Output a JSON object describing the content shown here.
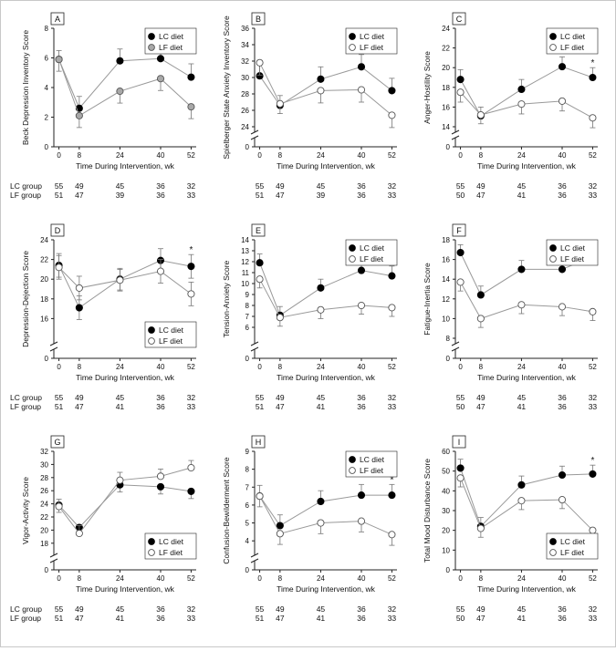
{
  "xlabel": "Time During Intervention, wk",
  "x_ticks": [
    0,
    8,
    24,
    40,
    52
  ],
  "group_labels": {
    "lc": "LC group",
    "lf": "LF group"
  },
  "colors": {
    "lc": "#000000",
    "lf_panel_a": "#a8a8a8",
    "lf": "#ffffff",
    "axis": "#222222",
    "line": "#999999"
  },
  "chart_data": [
    {
      "id": "A",
      "type": "line",
      "ylabel": "Beck Depression Inventory Score",
      "ylim": [
        0,
        8
      ],
      "yticks": [
        0,
        2,
        4,
        6,
        8
      ],
      "axis_break": false,
      "legend": "top-right",
      "x": [
        0,
        8,
        24,
        40,
        52
      ],
      "series": [
        {
          "name": "LC diet",
          "values": [
            5.9,
            2.6,
            5.8,
            5.95,
            4.7
          ],
          "err": [
            0.6,
            0.8,
            0.8,
            0.8,
            0.9
          ],
          "err_dir": "up"
        },
        {
          "name": "LF diet",
          "values": [
            5.9,
            2.1,
            3.75,
            4.6,
            2.7
          ],
          "err": [
            0.8,
            0.8,
            0.8,
            0.8,
            0.8
          ],
          "err_dir": "down"
        }
      ],
      "n": {
        "lc": [
          "55",
          "49",
          "45",
          "36",
          "32"
        ],
        "lf": [
          "51",
          "47",
          "39",
          "36",
          "33"
        ]
      },
      "significant_at": []
    },
    {
      "id": "B",
      "type": "line",
      "ylabel": "Spielberger State Anxiety Inventory Score",
      "ylim": [
        24,
        36
      ],
      "yticks": [
        0,
        24,
        26,
        28,
        30,
        32,
        34,
        36
      ],
      "axis_break": true,
      "legend": "top-right",
      "x": [
        0,
        8,
        24,
        40,
        52
      ],
      "series": [
        {
          "name": "LC diet",
          "values": [
            30.2,
            26.6,
            29.8,
            31.3,
            28.4
          ],
          "err": [
            1.5,
            1.2,
            1.5,
            1.5,
            1.5
          ],
          "err_dir": "up"
        },
        {
          "name": "LF diet",
          "values": [
            31.8,
            26.8,
            28.4,
            28.5,
            25.4
          ],
          "err": [
            1.5,
            1.2,
            1.5,
            1.5,
            1.5
          ],
          "err_dir": "down"
        }
      ],
      "n": {
        "lc": [
          "55",
          "49",
          "45",
          "36",
          "32"
        ],
        "lf": [
          "51",
          "47",
          "39",
          "36",
          "33"
        ]
      },
      "significant_at": []
    },
    {
      "id": "C",
      "type": "line",
      "ylabel": "Anger-Hostility Score",
      "ylim": [
        14,
        24
      ],
      "yticks": [
        0,
        14,
        16,
        18,
        20,
        22,
        24
      ],
      "axis_break": true,
      "legend": "top-right",
      "x": [
        0,
        8,
        24,
        40,
        52
      ],
      "series": [
        {
          "name": "LC diet",
          "values": [
            18.8,
            15.1,
            17.8,
            20.1,
            19.0
          ],
          "err": [
            1.0,
            0.9,
            1.0,
            1.0,
            1.0
          ],
          "err_dir": "up"
        },
        {
          "name": "LF diet",
          "values": [
            17.5,
            15.2,
            16.3,
            16.6,
            14.9
          ],
          "err": [
            1.0,
            0.9,
            1.0,
            1.0,
            1.0
          ],
          "err_dir": "down"
        }
      ],
      "n": {
        "lc": [
          "55",
          "49",
          "45",
          "36",
          "32"
        ],
        "lf": [
          "50",
          "47",
          "41",
          "36",
          "33"
        ]
      },
      "significant_at": [
        52
      ]
    },
    {
      "id": "D",
      "type": "line",
      "ylabel": "Depression-Dejection Score",
      "ylim": [
        14,
        24
      ],
      "yticks": [
        0,
        16,
        18,
        20,
        22,
        24
      ],
      "axis_break": true,
      "legend": "bottom-right",
      "x": [
        0,
        8,
        24,
        40,
        52
      ],
      "series": [
        {
          "name": "LC diet",
          "values": [
            21.4,
            17.1,
            20.0,
            21.9,
            21.3
          ],
          "err": [
            1.2,
            1.2,
            1.1,
            1.2,
            1.2
          ],
          "err_dir": "both"
        },
        {
          "name": "LF diet",
          "values": [
            21.2,
            19.1,
            19.9,
            20.8,
            18.5
          ],
          "err": [
            1.2,
            1.2,
            1.1,
            1.2,
            1.2
          ],
          "err_dir": "both"
        }
      ],
      "n": {
        "lc": [
          "55",
          "49",
          "45",
          "36",
          "32"
        ],
        "lf": [
          "51",
          "47",
          "41",
          "36",
          "33"
        ]
      },
      "significant_at": [
        52
      ]
    },
    {
      "id": "E",
      "type": "line",
      "ylabel": "Tension-Anxiety Score",
      "ylim": [
        5,
        14
      ],
      "yticks": [
        0,
        6,
        7,
        8,
        9,
        10,
        11,
        12,
        13,
        14
      ],
      "axis_break": true,
      "legend": "top-right",
      "x": [
        0,
        8,
        24,
        40,
        52
      ],
      "series": [
        {
          "name": "LC diet",
          "values": [
            11.9,
            7.1,
            9.6,
            11.2,
            10.7
          ],
          "err": [
            0.8,
            0.8,
            0.8,
            0.8,
            0.9
          ],
          "err_dir": "up"
        },
        {
          "name": "LF diet",
          "values": [
            10.4,
            6.9,
            7.6,
            8.0,
            7.8
          ],
          "err": [
            0.8,
            0.8,
            0.8,
            0.8,
            0.8
          ],
          "err_dir": "down"
        }
      ],
      "n": {
        "lc": [
          "55",
          "49",
          "45",
          "36",
          "32"
        ],
        "lf": [
          "51",
          "47",
          "41",
          "36",
          "33"
        ]
      },
      "significant_at": []
    },
    {
      "id": "F",
      "type": "line",
      "ylabel": "Fatigue-Inertia Score",
      "ylim": [
        8,
        18
      ],
      "yticks": [
        0,
        8,
        10,
        12,
        14,
        16,
        18
      ],
      "axis_break": true,
      "legend": "top-right",
      "x": [
        0,
        8,
        24,
        40,
        52
      ],
      "series": [
        {
          "name": "LC diet",
          "values": [
            16.7,
            12.4,
            15.0,
            15.0,
            16.3
          ],
          "err": [
            0.8,
            0.9,
            0.9,
            0.9,
            0.9
          ],
          "err_dir": "up"
        },
        {
          "name": "LF diet",
          "values": [
            13.7,
            10.0,
            11.4,
            11.2,
            10.7
          ],
          "err": [
            0.9,
            0.9,
            0.9,
            0.9,
            0.9
          ],
          "err_dir": "down"
        }
      ],
      "n": {
        "lc": [
          "55",
          "49",
          "45",
          "36",
          "32"
        ],
        "lf": [
          "50",
          "47",
          "41",
          "36",
          "33"
        ]
      },
      "significant_at": []
    },
    {
      "id": "G",
      "type": "line",
      "ylabel": "Vigor-Activity Score",
      "ylim": [
        17,
        32
      ],
      "yticks": [
        0,
        18,
        20,
        22,
        24,
        26,
        28,
        30,
        32
      ],
      "axis_break": true,
      "legend": "bottom-right",
      "x": [
        0,
        8,
        24,
        40,
        52
      ],
      "series": [
        {
          "name": "LC diet",
          "values": [
            23.8,
            20.4,
            26.9,
            26.6,
            25.9
          ],
          "err": [
            1.1,
            1.2,
            1.1,
            1.1,
            1.1
          ],
          "err_dir": "down"
        },
        {
          "name": "LF diet",
          "values": [
            23.6,
            19.5,
            27.6,
            28.2,
            29.5
          ],
          "err": [
            1.1,
            1.2,
            1.2,
            1.1,
            1.1
          ],
          "err_dir": "up"
        }
      ],
      "n": {
        "lc": [
          "55",
          "49",
          "45",
          "36",
          "32"
        ],
        "lf": [
          "51",
          "47",
          "41",
          "36",
          "33"
        ]
      },
      "significant_at": []
    },
    {
      "id": "H",
      "type": "line",
      "ylabel": "Confusion-Bewilderment Score",
      "ylim": [
        3.5,
        9
      ],
      "yticks": [
        0,
        4,
        5,
        6,
        7,
        8,
        9
      ],
      "axis_break": true,
      "legend": "top-right",
      "x": [
        0,
        8,
        24,
        40,
        52
      ],
      "series": [
        {
          "name": "LC diet",
          "values": [
            6.5,
            4.85,
            6.2,
            6.55,
            6.55
          ],
          "err": [
            0.6,
            0.6,
            0.6,
            0.6,
            0.6
          ],
          "err_dir": "up"
        },
        {
          "name": "LF diet",
          "values": [
            6.5,
            4.4,
            5.0,
            5.1,
            4.35
          ],
          "err": [
            0.6,
            0.6,
            0.6,
            0.6,
            0.6
          ],
          "err_dir": "down"
        }
      ],
      "n": {
        "lc": [
          "55",
          "49",
          "45",
          "36",
          "32"
        ],
        "lf": [
          "51",
          "47",
          "41",
          "36",
          "33"
        ]
      },
      "significant_at": [
        52
      ]
    },
    {
      "id": "I",
      "type": "line",
      "ylabel": "Total Mood Disturbance Score",
      "ylim": [
        0,
        60
      ],
      "yticks": [
        0,
        10,
        20,
        30,
        40,
        50,
        60
      ],
      "axis_break": false,
      "legend": "bottom-right",
      "x": [
        0,
        8,
        24,
        40,
        52
      ],
      "series": [
        {
          "name": "LC diet",
          "values": [
            51.5,
            22.0,
            43.0,
            48.0,
            48.5
          ],
          "err": [
            4.5,
            4.5,
            4.5,
            4.5,
            4.5
          ],
          "err_dir": "up"
        },
        {
          "name": "LF diet",
          "values": [
            46.5,
            21.0,
            35.0,
            35.5,
            20.0
          ],
          "err": [
            4.5,
            4.5,
            4.5,
            4.5,
            4.5
          ],
          "err_dir": "down"
        }
      ],
      "n": {
        "lc": [
          "55",
          "49",
          "45",
          "36",
          "32"
        ],
        "lf": [
          "50",
          "47",
          "41",
          "36",
          "33"
        ]
      },
      "significant_at": [
        52
      ]
    }
  ]
}
